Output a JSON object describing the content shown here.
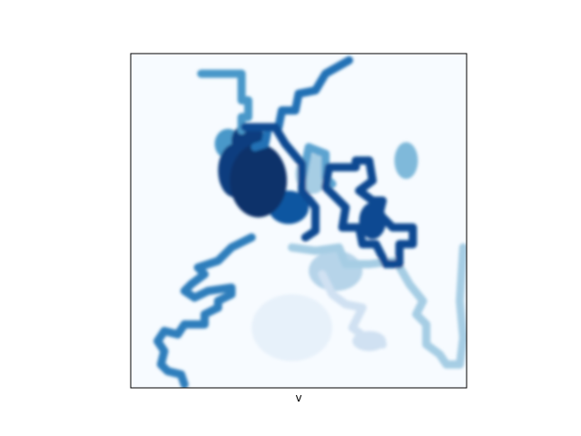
{
  "chart_data": {
    "type": "heatmap",
    "title": "",
    "xlabel": "v",
    "ylabel": "",
    "colormap": "Blues",
    "value_range": [
      0,
      1
    ],
    "grid": false,
    "legend": "none",
    "axis_ticks": "none",
    "frame_color": "#000000",
    "colormap_stops": [
      "#f7fbff",
      "#deebf7",
      "#c6dbef",
      "#9ecae1",
      "#6baed6",
      "#4292c6",
      "#2171b5",
      "#08519c",
      "#08306b"
    ],
    "series": [
      {
        "id": "arm-top",
        "level": 0.6,
        "points": [
          [
            0.21,
            0.06
          ],
          [
            0.33,
            0.06
          ],
          [
            0.33,
            0.14
          ],
          [
            0.35,
            0.14
          ],
          [
            0.35,
            0.19
          ],
          [
            0.33,
            0.19
          ],
          [
            0.33,
            0.23
          ]
        ]
      },
      {
        "id": "diagonal-top",
        "level": 0.75,
        "points": [
          [
            0.65,
            0.02
          ],
          [
            0.58,
            0.06
          ],
          [
            0.55,
            0.11
          ],
          [
            0.5,
            0.12
          ],
          [
            0.49,
            0.17
          ],
          [
            0.45,
            0.17
          ],
          [
            0.44,
            0.22
          ],
          [
            0.41,
            0.22
          ],
          [
            0.4,
            0.27
          ],
          [
            0.37,
            0.28
          ]
        ]
      },
      {
        "id": "core-ring",
        "level": 0.9,
        "points": [
          [
            0.34,
            0.22
          ],
          [
            0.43,
            0.22
          ],
          [
            0.46,
            0.27
          ],
          [
            0.51,
            0.33
          ],
          [
            0.51,
            0.41
          ],
          [
            0.55,
            0.46
          ],
          [
            0.55,
            0.53
          ],
          [
            0.52,
            0.55
          ]
        ]
      },
      {
        "id": "right-loop",
        "level": 0.9,
        "points": [
          [
            0.59,
            0.34
          ],
          [
            0.67,
            0.34
          ],
          [
            0.67,
            0.32
          ],
          [
            0.71,
            0.32
          ],
          [
            0.72,
            0.38
          ],
          [
            0.68,
            0.41
          ],
          [
            0.72,
            0.44
          ],
          [
            0.75,
            0.44
          ],
          [
            0.74,
            0.48
          ],
          [
            0.78,
            0.52
          ],
          [
            0.84,
            0.52
          ],
          [
            0.84,
            0.57
          ],
          [
            0.8,
            0.57
          ],
          [
            0.8,
            0.63
          ],
          [
            0.76,
            0.63
          ],
          [
            0.73,
            0.57
          ],
          [
            0.69,
            0.57
          ],
          [
            0.68,
            0.52
          ],
          [
            0.63,
            0.52
          ],
          [
            0.64,
            0.46
          ],
          [
            0.61,
            0.43
          ],
          [
            0.58,
            0.4
          ],
          [
            0.59,
            0.34
          ]
        ]
      },
      {
        "id": "loop-upper",
        "level": 0.55,
        "points": [
          [
            0.51,
            0.38
          ],
          [
            0.53,
            0.28
          ],
          [
            0.58,
            0.3
          ],
          [
            0.58,
            0.37
          ],
          [
            0.6,
            0.39
          ]
        ]
      },
      {
        "id": "branch-down-left",
        "level": 0.7,
        "points": [
          [
            0.36,
            0.55
          ],
          [
            0.3,
            0.58
          ],
          [
            0.26,
            0.62
          ],
          [
            0.2,
            0.64
          ],
          [
            0.22,
            0.66
          ],
          [
            0.18,
            0.69
          ],
          [
            0.16,
            0.71
          ],
          [
            0.19,
            0.73
          ],
          [
            0.23,
            0.71
          ],
          [
            0.3,
            0.7
          ],
          [
            0.3,
            0.72
          ],
          [
            0.26,
            0.74
          ],
          [
            0.26,
            0.76
          ],
          [
            0.22,
            0.78
          ],
          [
            0.22,
            0.81
          ],
          [
            0.16,
            0.81
          ],
          [
            0.14,
            0.84
          ],
          [
            0.1,
            0.83
          ],
          [
            0.08,
            0.86
          ],
          [
            0.1,
            0.89
          ],
          [
            0.09,
            0.93
          ],
          [
            0.11,
            0.95
          ],
          [
            0.15,
            0.96
          ],
          [
            0.16,
            0.99
          ]
        ]
      },
      {
        "id": "lower-right",
        "level": 0.35,
        "points": [
          [
            0.48,
            0.58
          ],
          [
            0.55,
            0.59
          ],
          [
            0.62,
            0.58
          ],
          [
            0.64,
            0.63
          ],
          [
            0.71,
            0.63
          ],
          [
            0.79,
            0.62
          ],
          [
            0.83,
            0.69
          ],
          [
            0.87,
            0.74
          ],
          [
            0.85,
            0.78
          ],
          [
            0.88,
            0.81
          ],
          [
            0.88,
            0.87
          ],
          [
            0.92,
            0.9
          ],
          [
            0.94,
            0.93
          ],
          [
            0.98,
            0.93
          ],
          [
            0.99,
            0.85
          ],
          [
            0.98,
            0.74
          ],
          [
            0.99,
            0.58
          ]
        ]
      },
      {
        "id": "faint-lower",
        "level": 0.2,
        "points": [
          [
            0.57,
            0.66
          ],
          [
            0.6,
            0.72
          ],
          [
            0.64,
            0.75
          ],
          [
            0.69,
            0.76
          ],
          [
            0.66,
            0.82
          ],
          [
            0.7,
            0.85
          ],
          [
            0.75,
            0.87
          ]
        ]
      }
    ],
    "blobs": [
      {
        "id": "core-center",
        "level": 1.0,
        "cx": 0.38,
        "cy": 0.38,
        "rx": 0.085,
        "ry": 0.11
      },
      {
        "id": "core-left",
        "level": 0.95,
        "cx": 0.31,
        "cy": 0.35,
        "rx": 0.05,
        "ry": 0.08
      },
      {
        "id": "core-right",
        "level": 0.85,
        "cx": 0.47,
        "cy": 0.46,
        "rx": 0.06,
        "ry": 0.05
      },
      {
        "id": "core-top",
        "level": 0.95,
        "cx": 0.35,
        "cy": 0.26,
        "rx": 0.05,
        "ry": 0.05
      },
      {
        "id": "right-lobe",
        "level": 0.9,
        "cx": 0.72,
        "cy": 0.5,
        "rx": 0.04,
        "ry": 0.055
      },
      {
        "id": "light-wing",
        "level": 0.35,
        "cx": 0.54,
        "cy": 0.36,
        "rx": 0.05,
        "ry": 0.06
      },
      {
        "id": "upper-left-patch",
        "level": 0.6,
        "cx": 0.29,
        "cy": 0.27,
        "rx": 0.04,
        "ry": 0.045
      },
      {
        "id": "right-cluster",
        "level": 0.45,
        "cx": 0.82,
        "cy": 0.32,
        "rx": 0.035,
        "ry": 0.055
      },
      {
        "id": "mid-pale",
        "level": 0.3,
        "cx": 0.61,
        "cy": 0.65,
        "rx": 0.08,
        "ry": 0.06
      },
      {
        "id": "low-pale",
        "level": 0.2,
        "cx": 0.71,
        "cy": 0.86,
        "rx": 0.05,
        "ry": 0.03
      },
      {
        "id": "very-faint",
        "level": 0.08,
        "cx": 0.48,
        "cy": 0.82,
        "rx": 0.12,
        "ry": 0.1
      }
    ]
  }
}
